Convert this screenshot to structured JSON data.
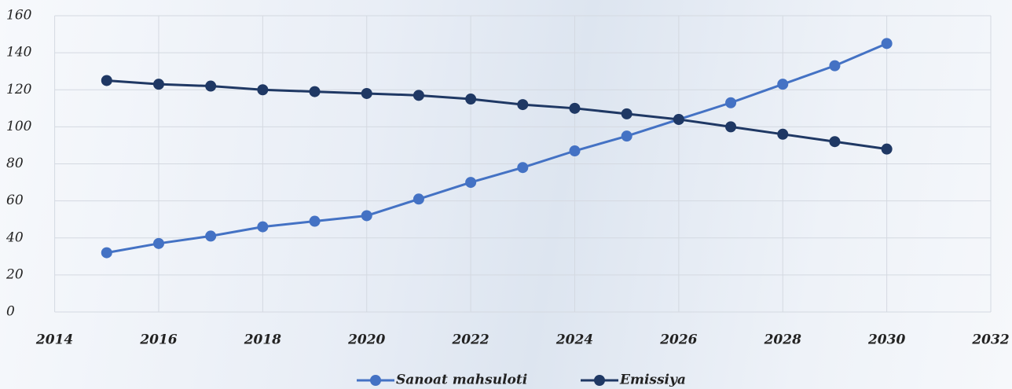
{
  "chart_data": {
    "type": "line",
    "x": [
      2015,
      2016,
      2017,
      2018,
      2019,
      2020,
      2021,
      2022,
      2023,
      2024,
      2025,
      2026,
      2027,
      2028,
      2029,
      2030
    ],
    "series": [
      {
        "name": "Sanoat mahsuloti",
        "color": "#4472c4",
        "values": [
          32,
          37,
          41,
          46,
          49,
          52,
          61,
          70,
          78,
          87,
          95,
          104,
          113,
          123,
          133,
          145
        ]
      },
      {
        "name": "Emissiya",
        "color": "#1f3864",
        "values": [
          125,
          123,
          122,
          120,
          119,
          118,
          117,
          115,
          112,
          110,
          107,
          104,
          100,
          96,
          92,
          88
        ]
      }
    ],
    "xlim": [
      2014,
      2032
    ],
    "xticks": [
      2014,
      2016,
      2018,
      2020,
      2022,
      2024,
      2026,
      2028,
      2030,
      2032
    ],
    "ylim": [
      0,
      160
    ],
    "yticks": [
      0,
      20,
      40,
      60,
      80,
      100,
      120,
      140,
      160
    ],
    "grid": true,
    "legend": "bottom"
  }
}
